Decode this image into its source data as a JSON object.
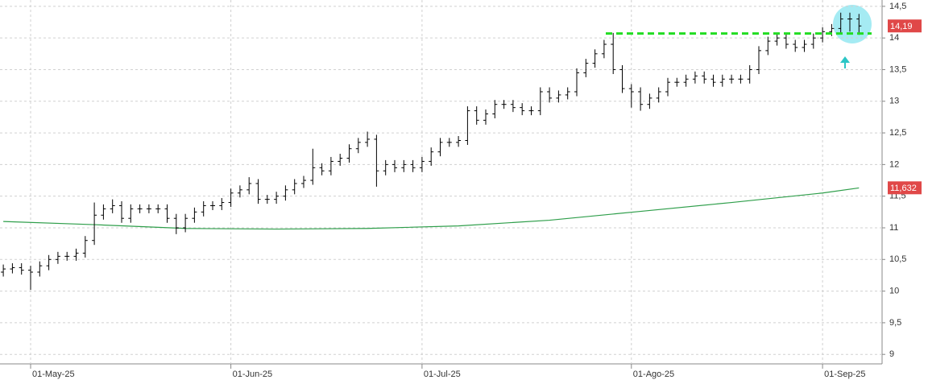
{
  "chart_data": {
    "type": "ohlc",
    "color": "#000000",
    "grid": true,
    "categories": [
      null,
      null,
      null,
      "01-May-25",
      null,
      null,
      null,
      null,
      null,
      null,
      null,
      null,
      null,
      null,
      null,
      null,
      null,
      null,
      null,
      null,
      null,
      null,
      null,
      null,
      null,
      "01-Jun-25",
      null,
      null,
      null,
      null,
      null,
      null,
      null,
      null,
      null,
      null,
      null,
      null,
      null,
      null,
      null,
      null,
      null,
      null,
      null,
      null,
      "01-Jul-25",
      null,
      null,
      null,
      null,
      null,
      null,
      null,
      null,
      null,
      null,
      null,
      null,
      null,
      null,
      null,
      null,
      null,
      null,
      null,
      null,
      null,
      null,
      "01-Ago-25",
      null,
      null,
      null,
      null,
      null,
      null,
      null,
      null,
      null,
      null,
      null,
      null,
      null,
      null,
      null,
      null,
      null,
      null,
      null,
      null,
      "01-Sep-25",
      null,
      null,
      null,
      null
    ],
    "open": [
      10.3,
      10.35,
      10.37,
      10.33,
      10.3,
      10.4,
      10.5,
      10.55,
      10.55,
      10.6,
      10.8,
      11.2,
      11.3,
      11.35,
      11.15,
      11.3,
      11.3,
      11.3,
      11.3,
      11.15,
      11.0,
      11.15,
      11.25,
      11.35,
      11.35,
      11.4,
      11.55,
      11.6,
      11.7,
      11.45,
      11.45,
      11.5,
      11.6,
      11.7,
      11.75,
      11.95,
      11.9,
      12.05,
      12.1,
      12.25,
      12.35,
      12.4,
      11.9,
      12.0,
      11.95,
      12.0,
      11.95,
      12.05,
      12.2,
      12.35,
      12.35,
      12.38,
      12.85,
      12.7,
      12.8,
      12.95,
      12.95,
      12.9,
      12.85,
      12.85,
      13.15,
      13.05,
      13.1,
      13.15,
      13.45,
      13.6,
      13.75,
      13.9,
      13.5,
      13.2,
      13.15,
      12.95,
      13.05,
      13.15,
      13.3,
      13.3,
      13.35,
      13.4,
      13.35,
      13.3,
      13.35,
      13.35,
      13.35,
      13.5,
      13.8,
      13.95,
      14.0,
      13.9,
      13.85,
      13.9,
      14.0,
      14.1,
      14.15,
      14.3,
      14.3
    ],
    "high": [
      10.42,
      10.44,
      10.44,
      10.4,
      10.47,
      10.57,
      10.62,
      10.62,
      10.67,
      10.87,
      11.4,
      11.37,
      11.45,
      11.42,
      11.37,
      11.37,
      11.37,
      11.37,
      11.37,
      11.22,
      11.22,
      11.32,
      11.42,
      11.42,
      11.47,
      11.62,
      11.67,
      11.8,
      11.77,
      11.52,
      11.57,
      11.67,
      11.77,
      11.82,
      12.25,
      12.02,
      12.12,
      12.17,
      12.32,
      12.42,
      12.52,
      12.47,
      12.07,
      12.07,
      12.07,
      12.07,
      12.12,
      12.27,
      12.42,
      12.42,
      12.45,
      12.92,
      12.92,
      12.87,
      13.02,
      13.02,
      13.02,
      12.97,
      12.92,
      13.22,
      13.22,
      13.17,
      13.22,
      13.52,
      13.67,
      13.82,
      13.97,
      14.08,
      13.57,
      13.27,
      13.22,
      13.12,
      13.22,
      13.37,
      13.37,
      13.42,
      13.47,
      13.47,
      13.42,
      13.42,
      13.42,
      13.42,
      13.57,
      13.87,
      14.02,
      14.07,
      14.07,
      13.97,
      13.97,
      14.07,
      14.17,
      14.22,
      14.4,
      14.4,
      14.38
    ],
    "low": [
      10.23,
      10.28,
      10.26,
      10.02,
      10.23,
      10.33,
      10.43,
      10.48,
      10.48,
      10.53,
      10.73,
      11.13,
      11.23,
      11.08,
      11.08,
      11.23,
      11.23,
      11.23,
      11.08,
      10.9,
      10.93,
      11.08,
      11.18,
      11.28,
      11.28,
      11.33,
      11.48,
      11.53,
      11.38,
      11.38,
      11.38,
      11.43,
      11.53,
      11.63,
      11.68,
      11.83,
      11.83,
      11.98,
      12.03,
      12.18,
      12.28,
      11.65,
      11.83,
      11.88,
      11.88,
      11.88,
      11.88,
      11.98,
      12.13,
      12.28,
      12.28,
      12.31,
      12.63,
      12.63,
      12.73,
      12.88,
      12.83,
      12.78,
      12.78,
      12.78,
      12.98,
      12.98,
      13.03,
      13.08,
      13.38,
      13.53,
      13.68,
      13.43,
      13.13,
      12.9,
      12.85,
      12.88,
      12.98,
      13.08,
      13.23,
      13.23,
      13.28,
      13.28,
      13.23,
      13.23,
      13.28,
      13.28,
      13.28,
      13.43,
      13.73,
      13.88,
      13.83,
      13.78,
      13.78,
      13.83,
      13.93,
      14.03,
      14.08,
      14.1,
      14.05
    ],
    "close": [
      10.35,
      10.37,
      10.33,
      10.3,
      10.4,
      10.5,
      10.55,
      10.55,
      10.6,
      10.8,
      11.2,
      11.3,
      11.35,
      11.15,
      11.3,
      11.3,
      11.3,
      11.3,
      11.15,
      11.0,
      11.15,
      11.25,
      11.35,
      11.35,
      11.4,
      11.55,
      11.6,
      11.7,
      11.45,
      11.45,
      11.5,
      11.6,
      11.7,
      11.75,
      11.95,
      11.9,
      12.05,
      12.1,
      12.25,
      12.35,
      12.4,
      11.9,
      12.0,
      11.95,
      12.0,
      11.95,
      12.05,
      12.2,
      12.35,
      12.35,
      12.38,
      12.85,
      12.7,
      12.8,
      12.95,
      12.95,
      12.9,
      12.85,
      12.85,
      13.15,
      13.05,
      13.1,
      13.15,
      13.45,
      13.6,
      13.75,
      13.9,
      13.5,
      13.2,
      13.15,
      12.95,
      13.05,
      13.15,
      13.3,
      13.3,
      13.35,
      13.4,
      13.35,
      13.3,
      13.35,
      13.35,
      13.35,
      13.5,
      13.8,
      13.95,
      14.0,
      13.9,
      13.85,
      13.9,
      14.0,
      14.1,
      14.15,
      14.3,
      14.3,
      14.19
    ],
    "moving_average": {
      "color": "#2e9e4a",
      "x": [
        0,
        10,
        20,
        30,
        40,
        50,
        60,
        70,
        80,
        90,
        94
      ],
      "values": [
        11.1,
        11.05,
        10.99,
        10.98,
        10.99,
        11.03,
        11.12,
        11.26,
        11.4,
        11.55,
        11.63
      ]
    },
    "resistance": {
      "value": 14.07,
      "color": "#22dd22"
    },
    "price_markers": [
      {
        "value": 14.19,
        "label": "14,19"
      },
      {
        "value": 11.632,
        "label": "11,632"
      }
    ],
    "ylim": [
      8.85,
      14.6
    ],
    "yticks": [
      9,
      {
        "value": 9.5,
        "label": "9,5"
      },
      10,
      {
        "value": 10.5,
        "label": "10,5"
      },
      11,
      {
        "value": 11.5,
        "label": "11,5"
      },
      12,
      {
        "value": 12.5,
        "label": "12,5"
      },
      13,
      {
        "value": 13.5,
        "label": "13,5"
      },
      14,
      {
        "value": 14.5,
        "label": "14,5"
      }
    ]
  }
}
